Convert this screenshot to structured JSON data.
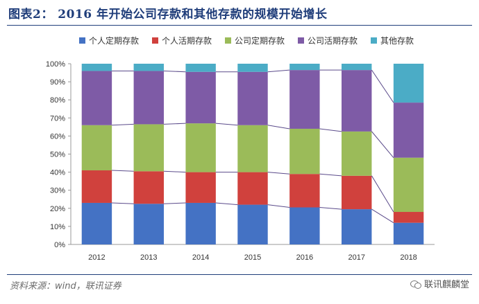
{
  "header": {
    "title": "图表2： 2016 年开始公司存款和其他存款的规模开始增长"
  },
  "footer": {
    "source": "资料来源：wind，联讯证券",
    "watermark": "联讯麒麟堂"
  },
  "chart_data": {
    "type": "bar",
    "stacked": true,
    "categories": [
      "2012",
      "2013",
      "2014",
      "2015",
      "2016",
      "2017",
      "2018"
    ],
    "series": [
      {
        "name": "个人定期存款",
        "color": "#4472c4",
        "values": [
          23,
          22.5,
          23,
          22,
          20.5,
          19.5,
          12
        ]
      },
      {
        "name": "个人活期存款",
        "color": "#d0413d",
        "values": [
          18,
          18,
          17,
          18,
          18.5,
          18.5,
          6
        ]
      },
      {
        "name": "公司定期存款",
        "color": "#9bbb59",
        "values": [
          25,
          26,
          27,
          26,
          25,
          24.5,
          30
        ]
      },
      {
        "name": "公司活期存款",
        "color": "#7e5ba6",
        "values": [
          30,
          29.5,
          28.5,
          29.5,
          32.5,
          34,
          30.5
        ]
      },
      {
        "name": "其他存款",
        "color": "#4bacc6",
        "values": [
          4,
          4,
          4.5,
          4.5,
          3.5,
          3.5,
          21.5
        ]
      }
    ],
    "yticks": [
      "0%",
      "10%",
      "20%",
      "30%",
      "40%",
      "50%",
      "60%",
      "70%",
      "80%",
      "90%",
      "100%"
    ],
    "ylim": [
      0,
      100
    ],
    "legend": "top",
    "grid": false
  }
}
